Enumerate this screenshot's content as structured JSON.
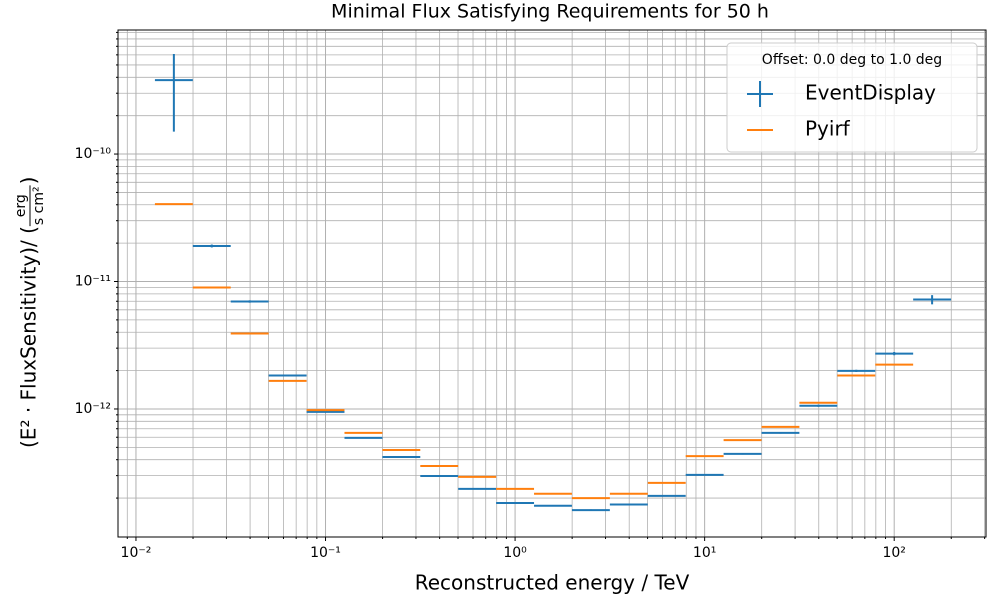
{
  "chart_data": {
    "type": "errorbar_steps",
    "title": "Minimal Flux Satisfying Requirements for 50 h",
    "xlabel": "Reconstructed energy / TeV",
    "ylabel": {
      "text": "(E² · FluxSensitivity)/ (",
      "numerator": "erg",
      "denominator": "s cm²",
      "close": ")"
    },
    "xlog": true,
    "ylog": true,
    "grid": true,
    "xlim": [
      0.00804,
      305
    ],
    "ylim": [
      9.9e-14,
      9.4e-10
    ],
    "xticks": [
      {
        "value": 0.01,
        "label": "10⁻²"
      },
      {
        "value": 0.1,
        "label": "10⁻¹"
      },
      {
        "value": 1,
        "label": "10⁰"
      },
      {
        "value": 10,
        "label": "10¹"
      },
      {
        "value": 100,
        "label": "10²"
      }
    ],
    "yticks": [
      {
        "value": 1e-12,
        "label": "10⁻¹²"
      },
      {
        "value": 1e-11,
        "label": "10⁻¹¹"
      },
      {
        "value": 1e-10,
        "label": "10⁻¹⁰"
      }
    ],
    "xminorticks": [
      0.009,
      0.02,
      0.03,
      0.04,
      0.05,
      0.06,
      0.07,
      0.08,
      0.09,
      0.2,
      0.3,
      0.4,
      0.5,
      0.6,
      0.7,
      0.8,
      0.9,
      2,
      3,
      4,
      5,
      6,
      7,
      8,
      9,
      20,
      30,
      40,
      50,
      60,
      70,
      80,
      90,
      200,
      300
    ],
    "yminorticks": [
      2e-13,
      3e-13,
      4e-13,
      5e-13,
      6e-13,
      7e-13,
      8e-13,
      9e-13,
      2e-12,
      3e-12,
      4e-12,
      5e-12,
      6e-12,
      7e-12,
      8e-12,
      9e-12,
      2e-11,
      3e-11,
      4e-11,
      5e-11,
      6e-11,
      7e-11,
      8e-11,
      9e-11,
      2e-10,
      3e-10,
      4e-10,
      5e-10,
      6e-10,
      7e-10,
      8e-10,
      9e-10
    ],
    "bin_edges": [
      0.01259,
      0.01995,
      0.03162,
      0.05012,
      0.07943,
      0.1259,
      0.1995,
      0.3162,
      0.5012,
      0.7943,
      1.259,
      1.995,
      3.162,
      5.012,
      7.943,
      12.59,
      19.95,
      31.62,
      50.12,
      79.43,
      125.9,
      199.5
    ],
    "legend": {
      "title": "Offset: 0.0 deg to 1.0 deg",
      "position": "upper right"
    },
    "series": [
      {
        "name": "EventDisplay",
        "color": "#1f77b4",
        "values": [
          3.8e-10,
          1.9e-11,
          6.97e-12,
          1.83e-12,
          9.5e-13,
          5.93e-13,
          4.2e-13,
          2.98e-13,
          2.36e-13,
          1.83e-13,
          1.74e-13,
          1.61e-13,
          1.78e-13,
          2.08e-13,
          3.04e-13,
          4.44e-13,
          6.49e-13,
          1.06e-12,
          1.99e-12,
          2.72e-12,
          7.22e-12
        ],
        "errors": [
          2.3e-10,
          5e-13,
          1.5e-13,
          3e-14,
          1e-14,
          6e-15,
          4e-15,
          3e-15,
          2e-15,
          2e-15,
          2e-15,
          2e-15,
          2e-15,
          2e-15,
          3e-15,
          5e-15,
          8e-15,
          2e-14,
          4e-14,
          8e-14,
          6e-13
        ]
      },
      {
        "name": "Pyirf",
        "color": "#ff7f0e",
        "values": [
          4.05e-11,
          8.97e-12,
          3.91e-12,
          1.66e-12,
          9.8e-13,
          6.49e-13,
          4.77e-13,
          3.57e-13,
          2.93e-13,
          2.36e-13,
          2.16e-13,
          2e-13,
          2.16e-13,
          2.63e-13,
          4.27e-13,
          5.7e-13,
          7.24e-13,
          1.12e-12,
          1.83e-12,
          2.23e-12,
          null
        ]
      }
    ]
  }
}
